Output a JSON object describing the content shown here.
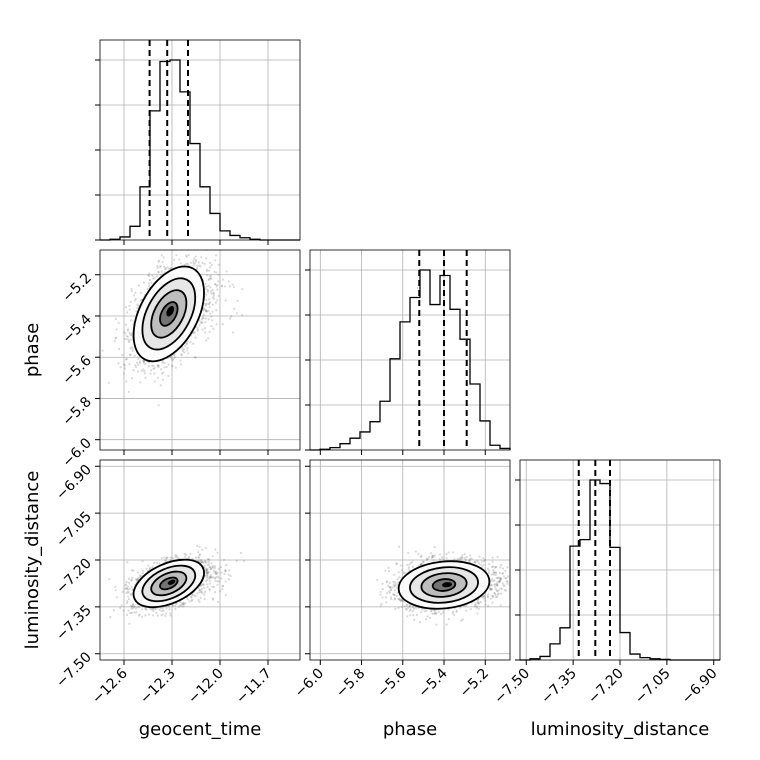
{
  "chart_data": {
    "type": "corner",
    "title": "",
    "parameters": [
      {
        "name": "geocent_time",
        "label": "geocent_time",
        "range": [
          -12.75,
          -11.5
        ],
        "ticks": [
          -12.6,
          -12.3,
          -12.0,
          -11.7
        ],
        "tick_labels": [
          "−12.6",
          "−12.3",
          "−12.0",
          "−11.7"
        ],
        "quantiles": [
          -12.44,
          -12.33,
          -12.2
        ]
      },
      {
        "name": "phase",
        "label": "phase",
        "range": [
          -6.05,
          -5.08
        ],
        "ticks": [
          -6.0,
          -5.8,
          -5.6,
          -5.4,
          -5.2
        ],
        "tick_labels": [
          "−6.0",
          "−5.8",
          "−5.6",
          "−5.4",
          "−5.2"
        ],
        "quantiles": [
          -5.52,
          -5.4,
          -5.29
        ]
      },
      {
        "name": "luminosity_distance",
        "label": "luminosity_distance",
        "range": [
          -7.52,
          -6.88
        ],
        "ticks": [
          -7.5,
          -7.35,
          -7.2,
          -7.05,
          -6.9
        ],
        "tick_labels": [
          "−7.50",
          "−7.35",
          "−7.20",
          "−7.05",
          "−6.90"
        ],
        "quantiles": [
          -7.332,
          -7.279,
          -7.232
        ]
      }
    ],
    "histograms": [
      {
        "param": "geocent_time",
        "bin_edges": [
          -12.75,
          -12.6875,
          -12.625,
          -12.5625,
          -12.5,
          -12.4375,
          -12.375,
          -12.3125,
          -12.25,
          -12.1875,
          -12.125,
          -12.0625,
          -12.0,
          -11.9375,
          -11.875,
          -11.8125,
          -11.75,
          -11.6875,
          -11.625,
          -11.5625,
          -11.5
        ],
        "counts": [
          0,
          1,
          4,
          18,
          70,
          170,
          235,
          237,
          195,
          127,
          70,
          35,
          12,
          6,
          3,
          1,
          0,
          0,
          0,
          0
        ]
      },
      {
        "param": "phase",
        "bin_edges": [
          -6.05,
          -6.0015,
          -5.953,
          -5.9045,
          -5.856,
          -5.8075,
          -5.759,
          -5.7105,
          -5.662,
          -5.6135,
          -5.565,
          -5.5165,
          -5.468,
          -5.4195,
          -5.371,
          -5.3225,
          -5.274,
          -5.2255,
          -5.177,
          -5.1285,
          -5.08
        ],
        "counts": [
          0,
          1,
          3,
          8,
          15,
          23,
          36,
          62,
          116,
          163,
          194,
          229,
          185,
          222,
          179,
          141,
          84,
          37,
          6,
          2
        ]
      },
      {
        "param": "luminosity_distance",
        "bin_edges": [
          -7.52,
          -7.488,
          -7.456,
          -7.424,
          -7.392,
          -7.36,
          -7.328,
          -7.296,
          -7.264,
          -7.232,
          -7.2,
          -7.168,
          -7.136,
          -7.104,
          -7.072,
          -7.04,
          -7.008,
          -6.976,
          -6.944,
          -6.912,
          -6.88
        ],
        "counts": [
          0,
          2,
          6,
          27,
          54,
          191,
          202,
          302,
          296,
          189,
          46,
          10,
          4,
          2,
          1,
          0,
          0,
          0,
          0,
          0
        ]
      }
    ],
    "pairs": [
      {
        "x": "geocent_time",
        "y": "phase",
        "center": [
          -12.32,
          -5.39
        ],
        "sx": 0.11,
        "sy": 0.115,
        "rho": 0.45
      },
      {
        "x": "geocent_time",
        "y": "luminosity_distance",
        "center": [
          -12.32,
          -7.275
        ],
        "sx": 0.11,
        "sy": 0.038,
        "rho": 0.45
      },
      {
        "x": "phase",
        "y": "luminosity_distance",
        "center": [
          -5.4,
          -7.28
        ],
        "sx": 0.11,
        "sy": 0.038,
        "rho": 0.15
      }
    ],
    "contour_levels_sigma": [
      0.5,
      1.0,
      1.5,
      2.0
    ],
    "grid": true
  }
}
